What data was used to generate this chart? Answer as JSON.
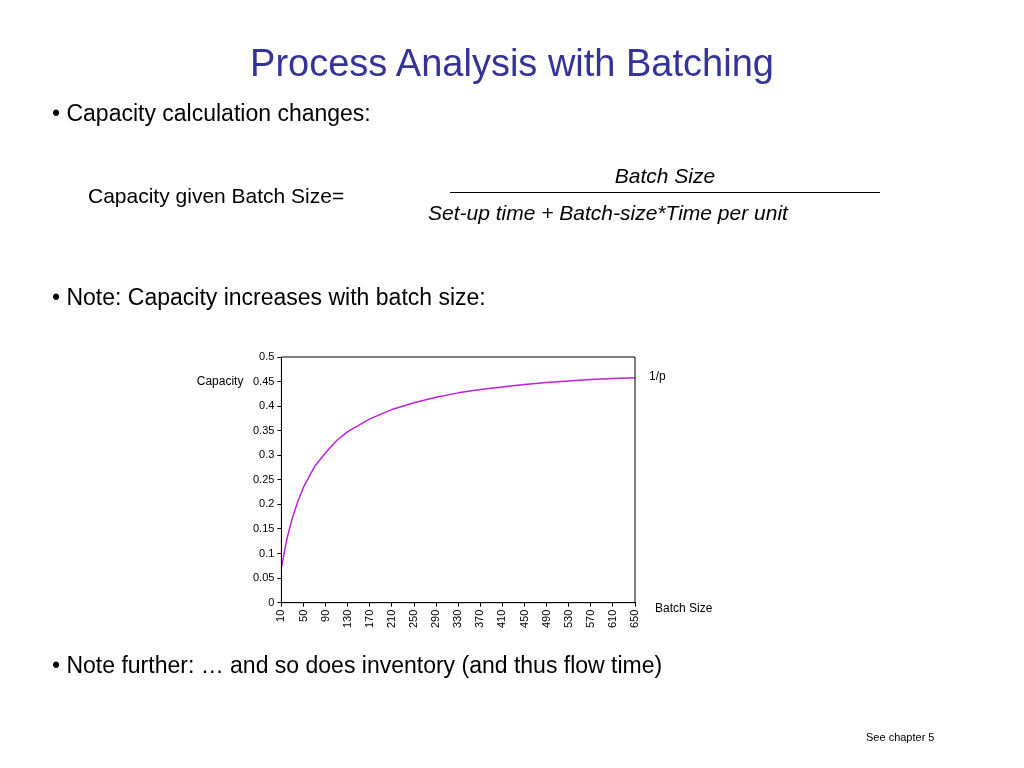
{
  "chart_data": {
    "type": "line",
    "title": "Process Analysis with Batching",
    "xlabel": "Batch Size",
    "ylabel": "Capacity",
    "annotations": [
      "• Capacity calculation changes:",
      "Capacity given Batch Size=",
      "Batch Size",
      "Set-up time + Batch-size*Time per unit",
      "• Note: Capacity increases with batch size:",
      "• Note further: … and so does inventory (and thus flow time)",
      "See chapter 5",
      {
        "text": "1/p",
        "x": 650,
        "y": 0.46
      }
    ],
    "series": [
      {
        "color": "#bb22dd",
        "x": [
          10,
          20,
          30,
          40,
          50,
          70,
          90,
          110,
          130,
          170,
          210,
          250,
          290,
          330,
          370,
          410,
          450,
          490,
          530,
          570,
          610,
          650
        ],
        "values": [
          0.072,
          0.13,
          0.173,
          0.207,
          0.235,
          0.277,
          0.305,
          0.33,
          0.348,
          0.374,
          0.393,
          0.407,
          0.418,
          0.427,
          0.434,
          0.439,
          0.444,
          0.448,
          0.451,
          0.454,
          0.456,
          0.458
        ]
      }
    ],
    "xlim": [
      10,
      650
    ],
    "xticks": [
      10,
      50,
      90,
      130,
      170,
      210,
      250,
      290,
      330,
      370,
      410,
      450,
      490,
      530,
      570,
      610,
      650
    ],
    "ylim": [
      0,
      0.5
    ],
    "yticks": [
      0,
      0.05,
      0.1,
      0.15,
      0.2,
      0.25,
      0.3,
      0.35,
      0.4,
      0.45,
      0.5
    ],
    "grid": false,
    "legend": false,
    "marker": "none",
    "line_style": "solid"
  }
}
